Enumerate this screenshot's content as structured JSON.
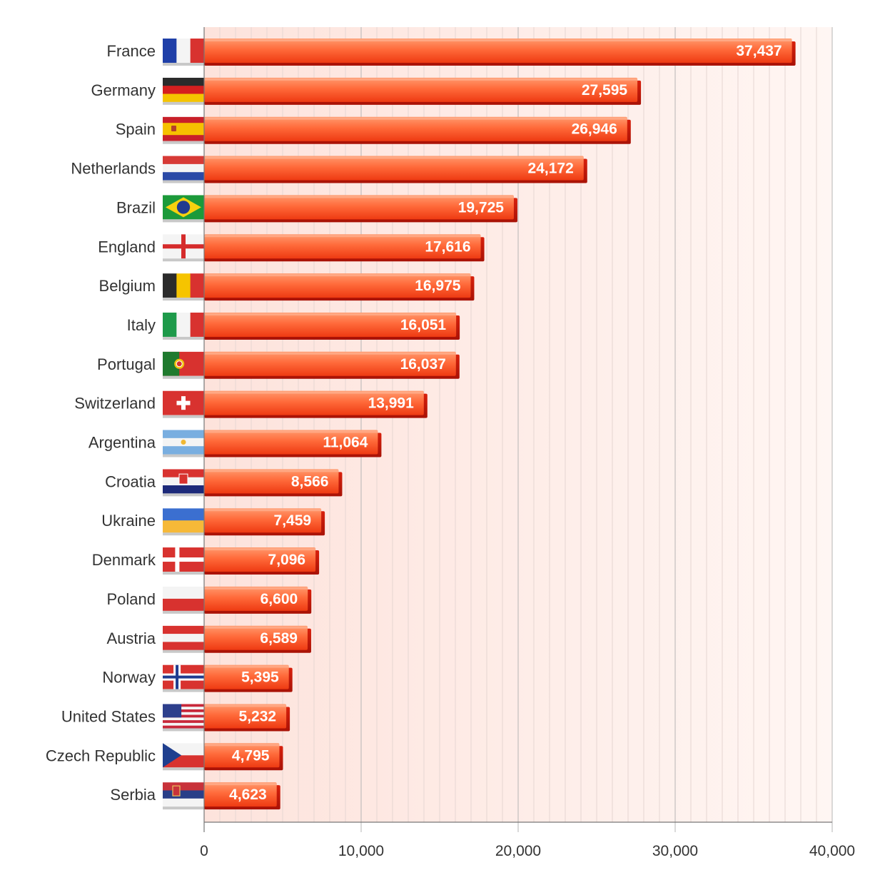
{
  "chart_data": {
    "type": "bar",
    "orientation": "horizontal",
    "categories": [
      "France",
      "Germany",
      "Spain",
      "Netherlands",
      "Brazil",
      "England",
      "Belgium",
      "Italy",
      "Portugal",
      "Switzerland",
      "Argentina",
      "Croatia",
      "Ukraine",
      "Denmark",
      "Poland",
      "Austria",
      "Norway",
      "United States",
      "Czech Republic",
      "Serbia"
    ],
    "values": [
      37437,
      27595,
      26946,
      24172,
      19725,
      17616,
      16975,
      16051,
      16037,
      13991,
      11064,
      8566,
      7459,
      7096,
      6600,
      6589,
      5395,
      5232,
      4795,
      4623
    ],
    "value_labels": [
      "37,437",
      "27,595",
      "26,946",
      "24,172",
      "19,725",
      "17,616",
      "16,975",
      "16,051",
      "16,037",
      "13,991",
      "11,064",
      "8,566",
      "7,459",
      "7,096",
      "6,600",
      "6,589",
      "5,395",
      "5,232",
      "4,795",
      "4,623"
    ],
    "flags": [
      "france-flag",
      "germany-flag",
      "spain-flag",
      "netherlands-flag",
      "brazil-flag",
      "england-flag",
      "belgium-flag",
      "italy-flag",
      "portugal-flag",
      "switzerland-flag",
      "argentina-flag",
      "croatia-flag",
      "ukraine-flag",
      "denmark-flag",
      "poland-flag",
      "austria-flag",
      "norway-flag",
      "united-states-flag",
      "czech-republic-flag",
      "serbia-flag"
    ],
    "xlim": [
      0,
      40000
    ],
    "xticks": [
      0,
      10000,
      20000,
      30000,
      40000
    ],
    "xtick_labels": [
      "0",
      "10,000",
      "20,000",
      "30,000",
      "40,000"
    ],
    "title": "",
    "xlabel": "",
    "ylabel": "",
    "grid": true,
    "legend": "none",
    "colors": {
      "bar_top": "#ff8a5c",
      "bar_bottom": "#f23a10",
      "bar_shadow": "#c41a08",
      "plot_bg_left": "#fde3dc",
      "plot_bg_right": "#fff6f3",
      "grid_major": "#b5b5b5",
      "grid_minor": "#e6d6d2"
    }
  }
}
